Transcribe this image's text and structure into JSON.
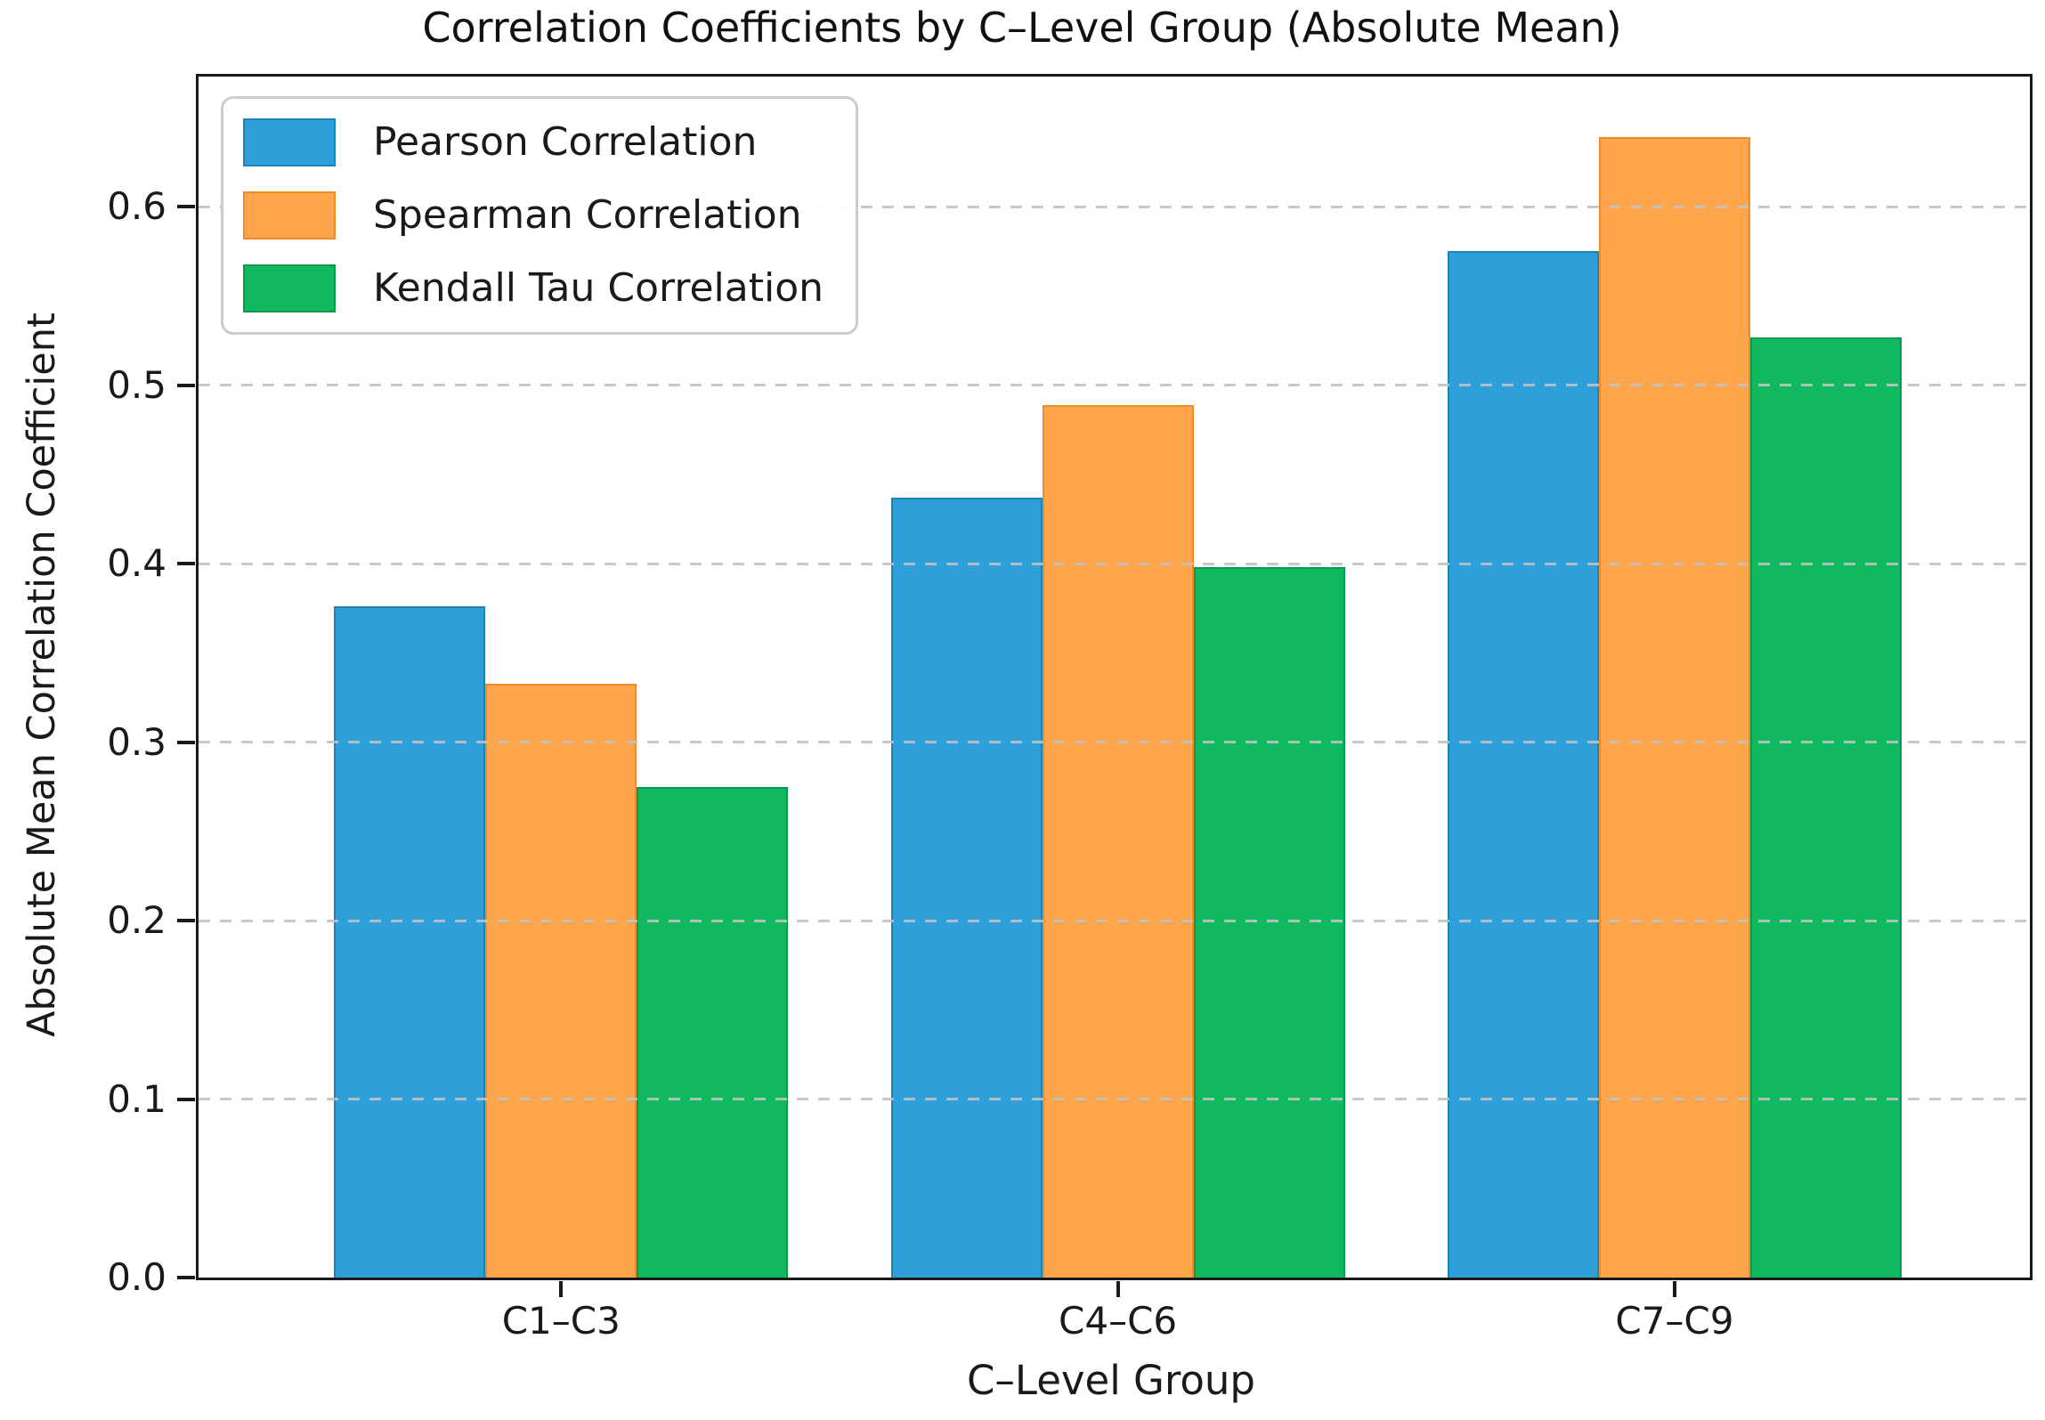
{
  "chart_data": {
    "type": "bar",
    "title": "Correlation Coefficients by C–Level Group (Absolute Mean)",
    "xlabel": "C–Level Group",
    "ylabel": "Absolute Mean Correlation Coefficient",
    "categories": [
      "C1–C3",
      "C4–C6",
      "C7–C9"
    ],
    "series": [
      {
        "name": "Pearson Correlation",
        "color": "#2e9fd8",
        "edge_color": "#1d84ba",
        "values": [
          0.376,
          0.437,
          0.575
        ]
      },
      {
        "name": "Spearman Correlation",
        "color": "#ffa64d",
        "edge_color": "#f08c28",
        "values": [
          0.333,
          0.489,
          0.639
        ]
      },
      {
        "name": "Kendall Tau Correlation",
        "color": "#10b95f",
        "edge_color": "#0a9a4e",
        "values": [
          0.275,
          0.398,
          0.527
        ]
      }
    ],
    "ylim": [
      0,
      0.673
    ],
    "yticks": [
      {
        "value": 0.0,
        "label": "0.0"
      },
      {
        "value": 0.1,
        "label": "0.1"
      },
      {
        "value": 0.2,
        "label": "0.2"
      },
      {
        "value": 0.3,
        "label": "0.3"
      },
      {
        "value": 0.4,
        "label": "0.4"
      },
      {
        "value": 0.5,
        "label": "0.5"
      },
      {
        "value": 0.6,
        "label": "0.6"
      }
    ],
    "grid": {
      "axis": "y",
      "style": "dashed",
      "color": "#c2c2c2"
    },
    "legend": {
      "position": "upper-left"
    }
  }
}
